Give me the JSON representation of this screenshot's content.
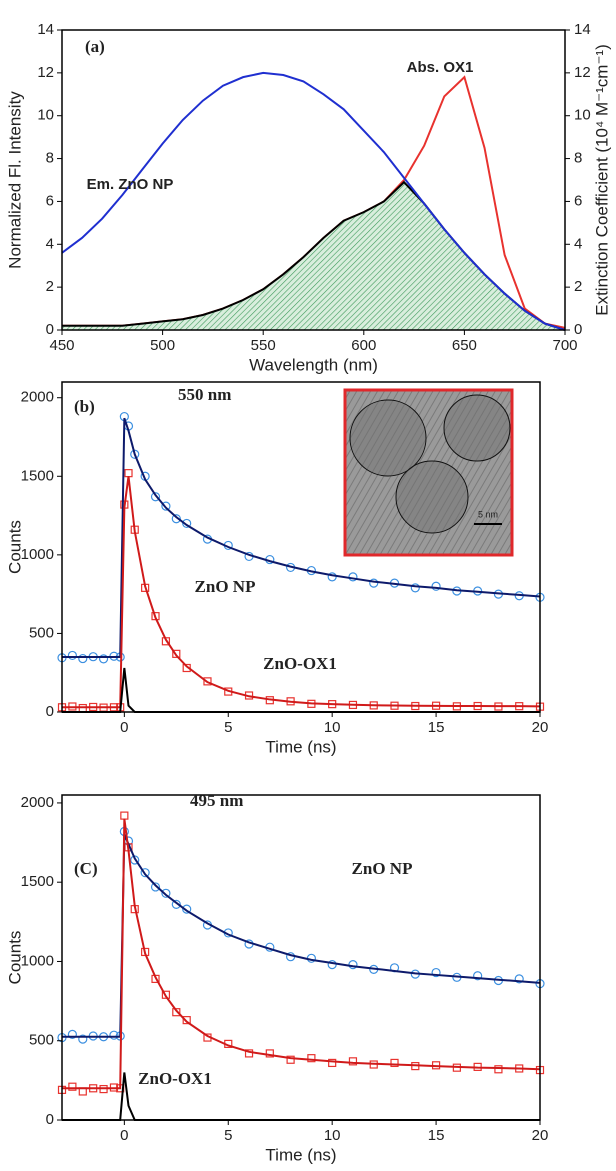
{
  "chart_data": [
    {
      "type": "line",
      "xlabel": "Wavelength (nm)",
      "ylabel": "Normalized Fl. Intensity",
      "y2label": "Extinction Coefficient (10⁴ M⁻¹cm⁻¹)",
      "x": [
        450,
        460,
        470,
        480,
        490,
        500,
        510,
        520,
        530,
        540,
        550,
        560,
        570,
        580,
        590,
        600,
        610,
        620,
        630,
        640,
        650,
        660,
        670,
        680,
        690,
        700
      ],
      "xlim": [
        450,
        700
      ],
      "xticks": [
        450,
        500,
        550,
        600,
        650,
        700
      ],
      "ylim": [
        0,
        14
      ],
      "yticks": [
        0,
        2,
        4,
        6,
        8,
        10,
        12,
        14
      ],
      "y2lim": [
        0,
        14
      ],
      "y2ticks": [
        0,
        2,
        4,
        6,
        8,
        10,
        12,
        14
      ],
      "annotations": [
        {
          "text": "(a)",
          "color": "#000000"
        }
      ],
      "series": [
        {
          "name": "Abs. OX1",
          "color": "#e8322e",
          "axis": "y2",
          "style": "line",
          "values": [
            0.2,
            0.2,
            0.2,
            0.2,
            0.3,
            0.4,
            0.5,
            0.7,
            1.0,
            1.4,
            1.9,
            2.6,
            3.4,
            4.3,
            5.1,
            5.5,
            6.0,
            7.0,
            8.6,
            10.9,
            11.8,
            8.5,
            3.5,
            1.0,
            0.3,
            0.1
          ]
        },
        {
          "color": "#000000",
          "style": "area",
          "values": [
            0.2,
            0.2,
            0.2,
            0.2,
            0.3,
            0.4,
            0.5,
            0.7,
            1.0,
            1.4,
            1.9,
            2.6,
            3.4,
            4.3,
            5.1,
            5.5,
            6.0,
            6.9,
            5.9,
            4.7,
            3.6,
            2.6,
            1.7,
            0.9,
            0.3,
            0
          ]
        },
        {
          "name": "Em. ZnO NP",
          "color": "#1f2fd0",
          "style": "line",
          "values": [
            3.6,
            4.3,
            5.2,
            6.3,
            7.5,
            8.7,
            9.8,
            10.7,
            11.4,
            11.8,
            12.0,
            11.9,
            11.6,
            11.0,
            10.3,
            9.3,
            8.3,
            7.1,
            5.9,
            4.7,
            3.6,
            2.6,
            1.7,
            0.9,
            0.3,
            0
          ]
        }
      ]
    },
    {
      "type": "scatter",
      "xlabel": "Time (ns)",
      "ylabel": "Counts",
      "inset_scale": "5 nm",
      "x": [
        -3,
        -2.5,
        -2,
        -1.5,
        -1,
        -0.5,
        -0.2,
        0,
        0.2,
        0.5,
        1,
        1.5,
        2,
        2.5,
        3,
        4,
        5,
        6,
        7,
        8,
        9,
        10,
        11,
        12,
        13,
        14,
        15,
        16,
        17,
        18,
        19,
        20
      ],
      "xlim": [
        -3,
        20
      ],
      "xticks": [
        0,
        5,
        10,
        15,
        20
      ],
      "ylim": [
        0,
        2100
      ],
      "yticks": [
        0,
        500,
        1000,
        1500,
        2000
      ],
      "annotations": [
        {
          "text": "(b)",
          "color": "#000000"
        },
        {
          "text": "550 nm",
          "color": "#3b8fe0"
        }
      ],
      "series": [
        {
          "name": "ZnO NP",
          "color": "#3b8fe0",
          "style": "markers",
          "marker": "circle",
          "values": [
            345,
            360,
            340,
            352,
            338,
            355,
            350,
            1880,
            1820,
            1640,
            1500,
            1370,
            1310,
            1230,
            1200,
            1100,
            1060,
            990,
            970,
            920,
            900,
            860,
            860,
            820,
            820,
            790,
            800,
            770,
            770,
            750,
            740,
            730
          ]
        },
        {
          "name": "ZnO-OX1",
          "color": "#e8322e",
          "style": "markers",
          "marker": "square",
          "values": [
            30,
            35,
            25,
            32,
            28,
            30,
            30,
            1320,
            1520,
            1160,
            790,
            610,
            450,
            370,
            280,
            195,
            130,
            105,
            75,
            68,
            52,
            50,
            45,
            42,
            40,
            38,
            40,
            36,
            38,
            35,
            37,
            34
          ]
        },
        {
          "color": "#0d1a6b",
          "style": "line",
          "values": [
            350,
            350,
            350,
            350,
            350,
            350,
            350,
            1870,
            1790,
            1640,
            1480,
            1380,
            1300,
            1240,
            1190,
            1110,
            1050,
            1000,
            960,
            925,
            895,
            870,
            850,
            830,
            815,
            800,
            790,
            775,
            765,
            755,
            745,
            735
          ]
        },
        {
          "color": "#d01a1a",
          "style": "line",
          "values": [
            30,
            30,
            30,
            30,
            30,
            30,
            30,
            1300,
            1500,
            1150,
            800,
            600,
            460,
            360,
            290,
            190,
            135,
            100,
            80,
            65,
            55,
            50,
            46,
            43,
            41,
            40,
            39,
            38,
            38,
            37,
            37,
            36
          ]
        },
        {
          "color": "#000000",
          "style": "line",
          "values": [
            0,
            0,
            0,
            0,
            0,
            0,
            0,
            280,
            40,
            0,
            0,
            0,
            0,
            0,
            0,
            0,
            0,
            0,
            0,
            0,
            0,
            0,
            0,
            0,
            0,
            0,
            0,
            0,
            0,
            0,
            0,
            0
          ]
        }
      ]
    },
    {
      "type": "scatter",
      "xlabel": "Time (ns)",
      "ylabel": "Counts",
      "x": [
        -3,
        -2.5,
        -2,
        -1.5,
        -1,
        -0.5,
        -0.2,
        0,
        0.2,
        0.5,
        1,
        1.5,
        2,
        2.5,
        3,
        4,
        5,
        6,
        7,
        8,
        9,
        10,
        11,
        12,
        13,
        14,
        15,
        16,
        17,
        18,
        19,
        20
      ],
      "xlim": [
        -3,
        20
      ],
      "xticks": [
        0,
        5,
        10,
        15,
        20
      ],
      "ylim": [
        0,
        2050
      ],
      "yticks": [
        0,
        500,
        1000,
        1500,
        2000
      ],
      "annotations": [
        {
          "text": "(C)",
          "color": "#000000"
        },
        {
          "text": "495 nm",
          "color": "#3b8fe0"
        }
      ],
      "series": [
        {
          "name": "ZnO NP",
          "color": "#3b8fe0",
          "style": "markers",
          "marker": "circle",
          "values": [
            520,
            540,
            510,
            530,
            525,
            535,
            530,
            1820,
            1760,
            1640,
            1560,
            1470,
            1430,
            1360,
            1330,
            1230,
            1180,
            1110,
            1090,
            1030,
            1020,
            980,
            980,
            950,
            960,
            920,
            930,
            900,
            910,
            880,
            890,
            860
          ]
        },
        {
          "name": "ZnO-OX1",
          "color": "#e8322e",
          "style": "markers",
          "marker": "square",
          "values": [
            190,
            210,
            180,
            200,
            195,
            205,
            200,
            1920,
            1720,
            1330,
            1060,
            890,
            790,
            680,
            630,
            520,
            480,
            420,
            420,
            380,
            390,
            360,
            370,
            350,
            360,
            340,
            345,
            330,
            335,
            320,
            325,
            315
          ]
        },
        {
          "color": "#0d1a6b",
          "style": "line",
          "values": [
            525,
            525,
            525,
            525,
            525,
            525,
            525,
            1800,
            1740,
            1650,
            1550,
            1480,
            1420,
            1370,
            1320,
            1240,
            1170,
            1120,
            1080,
            1040,
            1010,
            990,
            970,
            955,
            940,
            925,
            915,
            905,
            895,
            885,
            875,
            865
          ]
        },
        {
          "color": "#d01a1a",
          "style": "line",
          "values": [
            200,
            200,
            200,
            200,
            200,
            200,
            200,
            1900,
            1700,
            1350,
            1050,
            900,
            780,
            690,
            620,
            530,
            470,
            430,
            410,
            390,
            380,
            370,
            360,
            355,
            350,
            345,
            340,
            335,
            330,
            328,
            325,
            320
          ]
        },
        {
          "color": "#000000",
          "style": "line",
          "values": [
            0,
            0,
            0,
            0,
            0,
            0,
            0,
            300,
            90,
            0,
            0,
            0,
            0,
            0,
            0,
            0,
            0,
            0,
            0,
            0,
            0,
            0,
            0,
            0,
            0,
            0,
            0,
            0,
            0,
            0,
            0,
            0
          ]
        }
      ]
    }
  ]
}
